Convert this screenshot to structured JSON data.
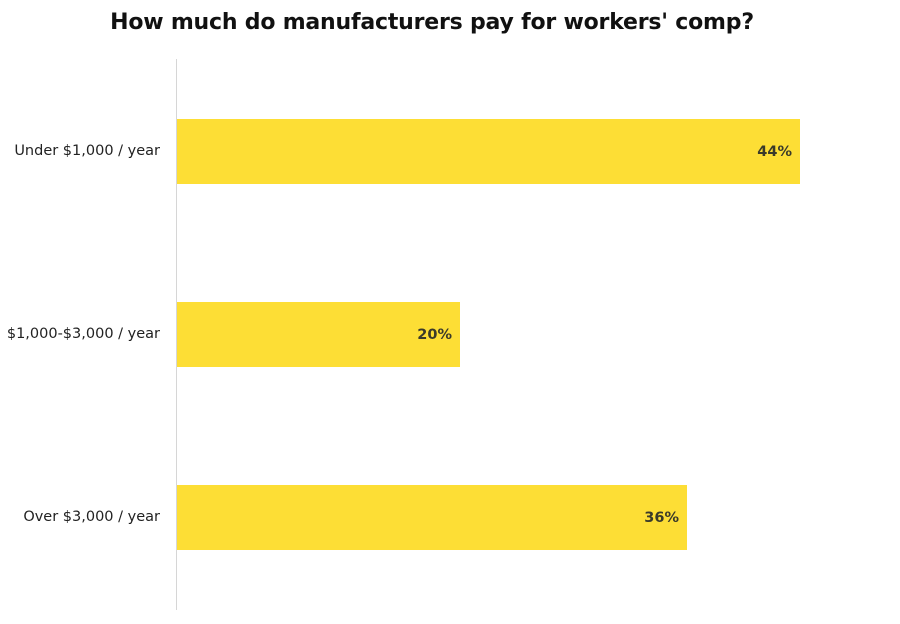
{
  "chart_data": {
    "type": "bar",
    "orientation": "horizontal",
    "title": "How much do manufacturers pay for workers' comp?",
    "xlabel": "",
    "ylabel": "",
    "categories": [
      "Under $1,000 / year",
      "$1,000-$3,000 / year",
      "Over $3,000 / year"
    ],
    "values": [
      44,
      20,
      36
    ],
    "value_labels": [
      "44%",
      "20%",
      "36%"
    ],
    "unit": "%",
    "grid": false,
    "legend": null,
    "bar_color": "#fdde35"
  },
  "labels": {
    "title": "How much do manufacturers pay for workers' comp?",
    "bars": [
      {
        "category": "Under $1,000 / year",
        "value_label": "44%"
      },
      {
        "category": "$1,000-$3,000 / year",
        "value_label": "20%"
      },
      {
        "category": "Over $3,000 / year",
        "value_label": "36%"
      }
    ]
  }
}
